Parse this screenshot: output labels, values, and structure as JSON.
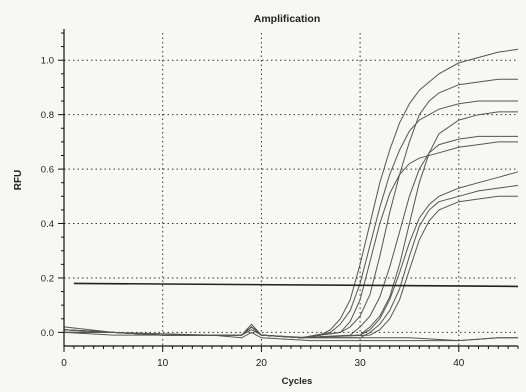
{
  "chart_data": {
    "type": "line",
    "title": "Amplification",
    "xlabel": "Cycles",
    "ylabel": "RFU",
    "xlim": [
      0,
      46
    ],
    "ylim": [
      -0.05,
      1.1
    ],
    "xticks": [
      0,
      10,
      20,
      30,
      40
    ],
    "xtick_labels": [
      "0",
      "10",
      "20",
      "30",
      "40"
    ],
    "yticks": [
      0.0,
      0.2,
      0.4,
      0.6,
      0.8,
      1.0
    ],
    "ytick_labels": [
      "0.0",
      "0.2",
      "0.4",
      "0.6",
      "0.8",
      "1.0"
    ],
    "grid": true,
    "threshold": 0.18,
    "line_color": "#555555",
    "threshold_color": "#222222",
    "series": [
      {
        "values": [
          [
            0,
            0.01
          ],
          [
            5,
            0.0
          ],
          [
            10,
            -0.005
          ],
          [
            15,
            -0.01
          ],
          [
            18,
            -0.01
          ],
          [
            19,
            0.03
          ],
          [
            20,
            -0.01
          ],
          [
            24,
            -0.02
          ],
          [
            26,
            -0.01
          ],
          [
            27,
            0.01
          ],
          [
            28,
            0.05
          ],
          [
            29,
            0.12
          ],
          [
            30,
            0.25
          ],
          [
            31,
            0.4
          ],
          [
            32,
            0.55
          ],
          [
            33,
            0.67
          ],
          [
            34,
            0.77
          ],
          [
            35,
            0.84
          ],
          [
            36,
            0.89
          ],
          [
            38,
            0.95
          ],
          [
            40,
            0.99
          ],
          [
            42,
            1.01
          ],
          [
            44,
            1.03
          ],
          [
            46,
            1.04
          ]
        ]
      },
      {
        "values": [
          [
            0,
            0.0
          ],
          [
            5,
            0.0
          ],
          [
            10,
            -0.01
          ],
          [
            15,
            -0.01
          ],
          [
            18,
            -0.01
          ],
          [
            19,
            0.02
          ],
          [
            20,
            -0.01
          ],
          [
            24,
            -0.02
          ],
          [
            27,
            0.0
          ],
          [
            28,
            0.03
          ],
          [
            29,
            0.08
          ],
          [
            30,
            0.18
          ],
          [
            31,
            0.32
          ],
          [
            32,
            0.46
          ],
          [
            33,
            0.58
          ],
          [
            34,
            0.67
          ],
          [
            35,
            0.74
          ],
          [
            36,
            0.78
          ],
          [
            38,
            0.82
          ],
          [
            40,
            0.84
          ],
          [
            42,
            0.85
          ],
          [
            44,
            0.85
          ],
          [
            46,
            0.85
          ]
        ]
      },
      {
        "values": [
          [
            0,
            0.02
          ],
          [
            5,
            0.0
          ],
          [
            10,
            -0.01
          ],
          [
            15,
            -0.01
          ],
          [
            18,
            -0.01
          ],
          [
            19,
            0.02
          ],
          [
            20,
            -0.01
          ],
          [
            24,
            -0.02
          ],
          [
            28,
            0.0
          ],
          [
            29,
            0.02
          ],
          [
            30,
            0.06
          ],
          [
            31,
            0.14
          ],
          [
            32,
            0.28
          ],
          [
            33,
            0.44
          ],
          [
            34,
            0.58
          ],
          [
            35,
            0.7
          ],
          [
            36,
            0.8
          ],
          [
            37,
            0.85
          ],
          [
            38,
            0.88
          ],
          [
            40,
            0.91
          ],
          [
            42,
            0.92
          ],
          [
            44,
            0.93
          ],
          [
            46,
            0.93
          ]
        ]
      },
      {
        "values": [
          [
            0,
            0.0
          ],
          [
            5,
            0.0
          ],
          [
            10,
            -0.01
          ],
          [
            15,
            -0.01
          ],
          [
            18,
            -0.01
          ],
          [
            19,
            0.02
          ],
          [
            20,
            -0.01
          ],
          [
            24,
            -0.02
          ],
          [
            28,
            0.0
          ],
          [
            29,
            0.04
          ],
          [
            30,
            0.12
          ],
          [
            31,
            0.26
          ],
          [
            32,
            0.4
          ],
          [
            33,
            0.51
          ],
          [
            34,
            0.58
          ],
          [
            35,
            0.62
          ],
          [
            36,
            0.64
          ],
          [
            38,
            0.66
          ],
          [
            40,
            0.68
          ],
          [
            42,
            0.69
          ],
          [
            44,
            0.7
          ],
          [
            46,
            0.7
          ]
        ]
      },
      {
        "values": [
          [
            0,
            0.01
          ],
          [
            5,
            0.0
          ],
          [
            10,
            -0.01
          ],
          [
            15,
            -0.01
          ],
          [
            18,
            -0.01
          ],
          [
            19,
            0.02
          ],
          [
            20,
            -0.01
          ],
          [
            24,
            -0.02
          ],
          [
            29,
            -0.01
          ],
          [
            30,
            0.02
          ],
          [
            31,
            0.06
          ],
          [
            32,
            0.13
          ],
          [
            33,
            0.24
          ],
          [
            34,
            0.37
          ],
          [
            35,
            0.5
          ],
          [
            36,
            0.6
          ],
          [
            37,
            0.66
          ],
          [
            38,
            0.69
          ],
          [
            40,
            0.71
          ],
          [
            42,
            0.72
          ],
          [
            44,
            0.72
          ],
          [
            46,
            0.72
          ]
        ]
      },
      {
        "values": [
          [
            0,
            0.0
          ],
          [
            5,
            0.0
          ],
          [
            10,
            -0.01
          ],
          [
            15,
            -0.01
          ],
          [
            18,
            -0.01
          ],
          [
            19,
            0.02
          ],
          [
            20,
            -0.01
          ],
          [
            24,
            -0.02
          ],
          [
            30,
            -0.01
          ],
          [
            31,
            0.02
          ],
          [
            32,
            0.06
          ],
          [
            33,
            0.13
          ],
          [
            34,
            0.25
          ],
          [
            35,
            0.4
          ],
          [
            36,
            0.55
          ],
          [
            37,
            0.66
          ],
          [
            38,
            0.73
          ],
          [
            40,
            0.78
          ],
          [
            42,
            0.8
          ],
          [
            44,
            0.81
          ],
          [
            46,
            0.81
          ]
        ]
      },
      {
        "values": [
          [
            0,
            0.01
          ],
          [
            5,
            0.0
          ],
          [
            10,
            -0.01
          ],
          [
            15,
            -0.01
          ],
          [
            18,
            -0.01
          ],
          [
            19,
            0.02
          ],
          [
            20,
            -0.01
          ],
          [
            24,
            -0.02
          ],
          [
            30,
            -0.01
          ],
          [
            31,
            0.01
          ],
          [
            32,
            0.05
          ],
          [
            33,
            0.12
          ],
          [
            34,
            0.22
          ],
          [
            35,
            0.33
          ],
          [
            36,
            0.42
          ],
          [
            37,
            0.47
          ],
          [
            38,
            0.5
          ],
          [
            40,
            0.53
          ],
          [
            42,
            0.55
          ],
          [
            44,
            0.57
          ],
          [
            46,
            0.59
          ]
        ]
      },
      {
        "values": [
          [
            0,
            0.0
          ],
          [
            5,
            0.0
          ],
          [
            10,
            -0.01
          ],
          [
            15,
            -0.01
          ],
          [
            18,
            -0.01
          ],
          [
            19,
            0.02
          ],
          [
            20,
            -0.01
          ],
          [
            24,
            -0.02
          ],
          [
            30,
            -0.02
          ],
          [
            31,
            0.0
          ],
          [
            32,
            0.03
          ],
          [
            33,
            0.08
          ],
          [
            34,
            0.16
          ],
          [
            35,
            0.28
          ],
          [
            36,
            0.39
          ],
          [
            37,
            0.45
          ],
          [
            38,
            0.48
          ],
          [
            40,
            0.5
          ],
          [
            42,
            0.52
          ],
          [
            44,
            0.53
          ],
          [
            46,
            0.54
          ]
        ]
      },
      {
        "values": [
          [
            0,
            0.01
          ],
          [
            5,
            0.0
          ],
          [
            10,
            -0.01
          ],
          [
            15,
            -0.01
          ],
          [
            18,
            -0.01
          ],
          [
            19,
            0.02
          ],
          [
            20,
            -0.01
          ],
          [
            24,
            -0.02
          ],
          [
            31,
            -0.01
          ],
          [
            32,
            0.01
          ],
          [
            33,
            0.05
          ],
          [
            34,
            0.12
          ],
          [
            35,
            0.23
          ],
          [
            36,
            0.34
          ],
          [
            37,
            0.41
          ],
          [
            38,
            0.45
          ],
          [
            40,
            0.48
          ],
          [
            42,
            0.49
          ],
          [
            44,
            0.5
          ],
          [
            46,
            0.5
          ]
        ]
      },
      {
        "values": [
          [
            0,
            0.0
          ],
          [
            5,
            -0.01
          ],
          [
            10,
            -0.01
          ],
          [
            15,
            -0.01
          ],
          [
            18,
            -0.02
          ],
          [
            19,
            0.0
          ],
          [
            20,
            -0.02
          ],
          [
            25,
            -0.03
          ],
          [
            30,
            -0.03
          ],
          [
            35,
            -0.03
          ],
          [
            40,
            -0.03
          ],
          [
            44,
            -0.02
          ],
          [
            46,
            -0.02
          ]
        ]
      },
      {
        "values": [
          [
            0,
            0.01
          ],
          [
            5,
            0.0
          ],
          [
            10,
            -0.01
          ],
          [
            15,
            -0.01
          ],
          [
            18,
            -0.01
          ],
          [
            19,
            0.01
          ],
          [
            20,
            -0.01
          ],
          [
            25,
            -0.02
          ],
          [
            30,
            -0.02
          ],
          [
            35,
            -0.02
          ],
          [
            40,
            -0.03
          ],
          [
            44,
            -0.02
          ],
          [
            46,
            -0.02
          ]
        ]
      }
    ]
  }
}
